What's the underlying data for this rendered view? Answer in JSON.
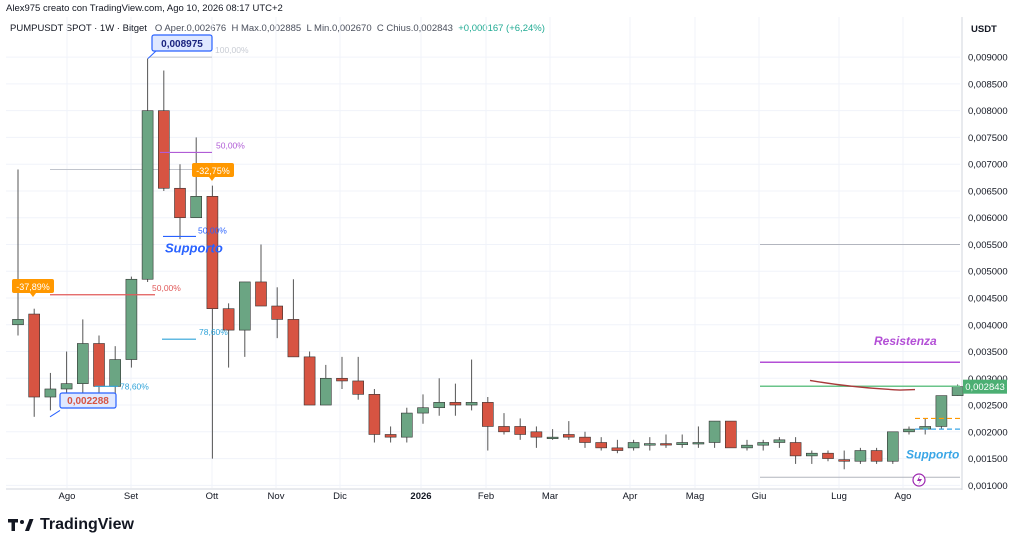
{
  "header": {
    "author_line": "Alex975 creato con TradingView.com, Ago 10, 2026 08:17 UTC+2",
    "symbol": "PUMPUSDT SPOT · 1W · Bitget",
    "open_label": "O",
    "open_value": "Aper.0,002676",
    "high_label": "H",
    "high_value": "Max.0,002885",
    "low_label": "L",
    "low_value": "Min.0,002670",
    "close_label": "C",
    "close_value": "Chius.0,002843",
    "change_value": "+0,000167 (+6,24%)"
  },
  "axis_unit": "USDT",
  "brand": "TradingView",
  "chart_data": {
    "type": "candlestick",
    "ylim": [
      0.00095,
      0.00975
    ],
    "y_ticks": [
      "0,001000",
      "0,001500",
      "0,002000",
      "0,002500",
      "0,003000",
      "0,003500",
      "0,004000",
      "0,004500",
      "0,005000",
      "0,005500",
      "0,006000",
      "0,006500",
      "0,007000",
      "0,007500",
      "0,008000",
      "0,008500",
      "0,009000"
    ],
    "x_labels": [
      "Ago",
      "Set",
      "Ott",
      "Nov",
      "Dic",
      "2026",
      "Feb",
      "Mar",
      "Apr",
      "Mag",
      "Giu",
      "Lug",
      "Ago"
    ],
    "candles": [
      {
        "o": 0.004,
        "h": 0.0069,
        "l": 0.0038,
        "c": 0.0041
      },
      {
        "o": 0.0042,
        "h": 0.0043,
        "l": 0.00228,
        "c": 0.00265
      },
      {
        "o": 0.00265,
        "h": 0.0031,
        "l": 0.0024,
        "c": 0.0028
      },
      {
        "o": 0.0028,
        "h": 0.0035,
        "l": 0.0027,
        "c": 0.0029
      },
      {
        "o": 0.0029,
        "h": 0.0041,
        "l": 0.0027,
        "c": 0.00365
      },
      {
        "o": 0.00365,
        "h": 0.0038,
        "l": 0.00265,
        "c": 0.00285
      },
      {
        "o": 0.00285,
        "h": 0.0036,
        "l": 0.0027,
        "c": 0.00335
      },
      {
        "o": 0.00335,
        "h": 0.0049,
        "l": 0.0032,
        "c": 0.00485
      },
      {
        "o": 0.00485,
        "h": 0.008975,
        "l": 0.0048,
        "c": 0.008
      },
      {
        "o": 0.008,
        "h": 0.00875,
        "l": 0.0065,
        "c": 0.00655
      },
      {
        "o": 0.00655,
        "h": 0.007,
        "l": 0.0056,
        "c": 0.006
      },
      {
        "o": 0.006,
        "h": 0.0075,
        "l": 0.006,
        "c": 0.0064
      },
      {
        "o": 0.0064,
        "h": 0.0066,
        "l": 0.0015,
        "c": 0.0043
      },
      {
        "o": 0.0043,
        "h": 0.0044,
        "l": 0.0032,
        "c": 0.0039
      },
      {
        "o": 0.0039,
        "h": 0.0048,
        "l": 0.0034,
        "c": 0.0048
      },
      {
        "o": 0.0048,
        "h": 0.0055,
        "l": 0.0044,
        "c": 0.00435
      },
      {
        "o": 0.00435,
        "h": 0.0047,
        "l": 0.00375,
        "c": 0.0041
      },
      {
        "o": 0.0041,
        "h": 0.00485,
        "l": 0.0034,
        "c": 0.0034
      },
      {
        "o": 0.0034,
        "h": 0.0035,
        "l": 0.0025,
        "c": 0.0025
      },
      {
        "o": 0.0025,
        "h": 0.00325,
        "l": 0.0025,
        "c": 0.003
      },
      {
        "o": 0.003,
        "h": 0.0034,
        "l": 0.0028,
        "c": 0.00295
      },
      {
        "o": 0.00295,
        "h": 0.0034,
        "l": 0.0026,
        "c": 0.0027
      },
      {
        "o": 0.0027,
        "h": 0.0028,
        "l": 0.0018,
        "c": 0.00195
      },
      {
        "o": 0.00195,
        "h": 0.0021,
        "l": 0.0018,
        "c": 0.0019
      },
      {
        "o": 0.0019,
        "h": 0.00245,
        "l": 0.0018,
        "c": 0.00235
      },
      {
        "o": 0.00235,
        "h": 0.0027,
        "l": 0.00215,
        "c": 0.00245
      },
      {
        "o": 0.00245,
        "h": 0.003,
        "l": 0.0023,
        "c": 0.00255
      },
      {
        "o": 0.00255,
        "h": 0.0029,
        "l": 0.0023,
        "c": 0.0025
      },
      {
        "o": 0.0025,
        "h": 0.00335,
        "l": 0.0024,
        "c": 0.00255
      },
      {
        "o": 0.00255,
        "h": 0.00265,
        "l": 0.00165,
        "c": 0.0021
      },
      {
        "o": 0.0021,
        "h": 0.00235,
        "l": 0.00195,
        "c": 0.002
      },
      {
        "o": 0.0021,
        "h": 0.00225,
        "l": 0.00185,
        "c": 0.00195
      },
      {
        "o": 0.002,
        "h": 0.0021,
        "l": 0.0017,
        "c": 0.0019
      },
      {
        "o": 0.0019,
        "h": 0.00205,
        "l": 0.00185,
        "c": 0.0019
      },
      {
        "o": 0.00195,
        "h": 0.0022,
        "l": 0.00185,
        "c": 0.0019
      },
      {
        "o": 0.0019,
        "h": 0.002,
        "l": 0.0017,
        "c": 0.0018
      },
      {
        "o": 0.0018,
        "h": 0.0019,
        "l": 0.00165,
        "c": 0.0017
      },
      {
        "o": 0.0017,
        "h": 0.00185,
        "l": 0.0016,
        "c": 0.00165
      },
      {
        "o": 0.0017,
        "h": 0.00185,
        "l": 0.00165,
        "c": 0.0018
      },
      {
        "o": 0.00175,
        "h": 0.0019,
        "l": 0.00165,
        "c": 0.00178
      },
      {
        "o": 0.00178,
        "h": 0.00195,
        "l": 0.0017,
        "c": 0.00176
      },
      {
        "o": 0.00176,
        "h": 0.00195,
        "l": 0.0017,
        "c": 0.0018
      },
      {
        "o": 0.0018,
        "h": 0.0021,
        "l": 0.0017,
        "c": 0.0018
      },
      {
        "o": 0.0018,
        "h": 0.0022,
        "l": 0.0017,
        "c": 0.0022
      },
      {
        "o": 0.0022,
        "h": 0.0022,
        "l": 0.0017,
        "c": 0.0017
      },
      {
        "o": 0.0017,
        "h": 0.00185,
        "l": 0.00165,
        "c": 0.00175
      },
      {
        "o": 0.00175,
        "h": 0.00185,
        "l": 0.00165,
        "c": 0.0018
      },
      {
        "o": 0.0018,
        "h": 0.0019,
        "l": 0.0017,
        "c": 0.00185
      },
      {
        "o": 0.0018,
        "h": 0.0019,
        "l": 0.0014,
        "c": 0.00155
      },
      {
        "o": 0.00155,
        "h": 0.00165,
        "l": 0.0014,
        "c": 0.0016
      },
      {
        "o": 0.0016,
        "h": 0.00165,
        "l": 0.00145,
        "c": 0.0015
      },
      {
        "o": 0.00148,
        "h": 0.00165,
        "l": 0.0013,
        "c": 0.00145
      },
      {
        "o": 0.00145,
        "h": 0.0017,
        "l": 0.0014,
        "c": 0.00165
      },
      {
        "o": 0.00165,
        "h": 0.0017,
        "l": 0.0014,
        "c": 0.00145
      },
      {
        "o": 0.00145,
        "h": 0.002,
        "l": 0.0014,
        "c": 0.002
      },
      {
        "o": 0.002,
        "h": 0.0021,
        "l": 0.00195,
        "c": 0.00205
      },
      {
        "o": 0.00205,
        "h": 0.00225,
        "l": 0.00195,
        "c": 0.0021
      },
      {
        "o": 0.0021,
        "h": 0.00265,
        "l": 0.00205,
        "c": 0.002676
      },
      {
        "o": 0.002676,
        "h": 0.002885,
        "l": 0.00267,
        "c": 0.002843
      }
    ],
    "annotations": {
      "peak_label": "0,008975",
      "low_label": "0,002288",
      "pct_left": "-37,89%",
      "pct_right": "-32,75%",
      "fib_100": "100,00%",
      "fib_50_a": "50,00%",
      "fib_50_b": "50,00%",
      "fib_50_c": "50,00%",
      "fib_786_a": "78,60%",
      "fib_786_b": "78,60%",
      "support_left": "Supporto",
      "support_right": "Supporto",
      "resistance": "Resistenza",
      "last_price": "0,002843"
    },
    "colors": {
      "up": "#6ba583",
      "down": "#d75442",
      "resistance": "#b34fd6",
      "support": "#3aa6e6",
      "ma": "#a83a3a",
      "orange": "#ff9800",
      "blue": "#2962ff"
    }
  }
}
